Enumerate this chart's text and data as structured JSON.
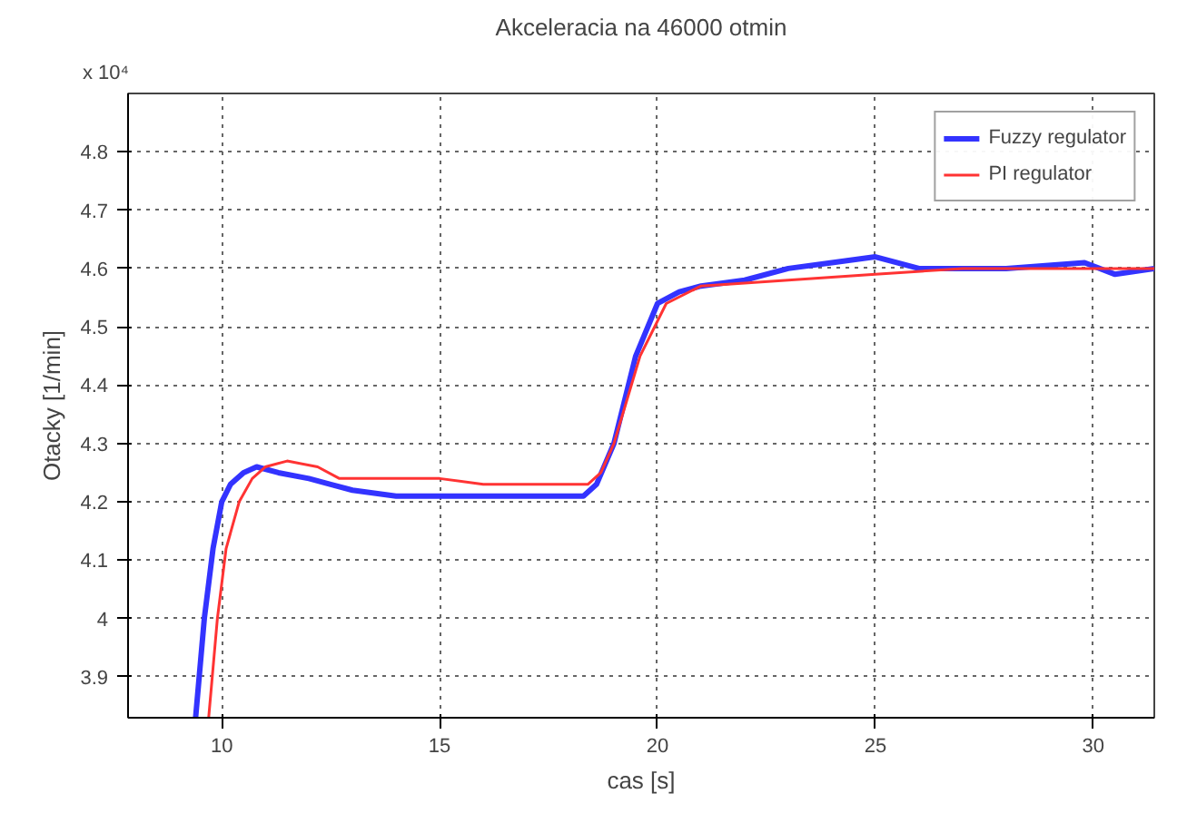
{
  "chart_data": {
    "type": "line",
    "title": "Akceleracia na 46000 otmin",
    "xlabel": "cas [s]",
    "ylabel": "Otacky [1/min]",
    "annotations": [
      "x 10⁴"
    ],
    "xlim": [
      7.85,
      31.4
    ],
    "xticks": [
      10,
      15,
      20,
      25,
      30
    ],
    "ylim": [
      3.83,
      4.9
    ],
    "yticks": [
      3.9,
      {
        "value": 4.0,
        "label": "4"
      },
      4.1,
      4.2,
      4.3,
      4.4,
      4.5,
      4.6,
      4.7,
      4.8
    ],
    "grid": true,
    "legend": "top right",
    "line_style": "solid",
    "series": [
      {
        "name": "Fuzzy regulator",
        "color": "#3333ff",
        "x": [
          9.4,
          9.6,
          9.8,
          10.0,
          10.2,
          10.5,
          10.8,
          11.3,
          12.0,
          12.5,
          13.0,
          14.0,
          16.0,
          18.3,
          18.6,
          19.0,
          19.5,
          20.0,
          20.5,
          21.0,
          22.0,
          23.0,
          24.0,
          25.0,
          26.0,
          28.0,
          29.8,
          30.5,
          31.4
        ],
        "values": [
          3.83,
          4.0,
          4.12,
          4.2,
          4.23,
          4.25,
          4.26,
          4.25,
          4.24,
          4.23,
          4.22,
          4.21,
          4.21,
          4.21,
          4.23,
          4.3,
          4.45,
          4.54,
          4.56,
          4.57,
          4.58,
          4.6,
          4.61,
          4.62,
          4.6,
          4.6,
          4.61,
          4.59,
          4.6
        ]
      },
      {
        "name": "PI regulator",
        "color": "#ff3333",
        "x": [
          9.7,
          9.9,
          10.1,
          10.4,
          10.7,
          11.0,
          11.5,
          12.2,
          12.7,
          15.0,
          16.0,
          18.4,
          18.7,
          19.0,
          19.6,
          20.2,
          21.0,
          23.0,
          25.0,
          27.0,
          31.4
        ],
        "values": [
          3.83,
          4.0,
          4.12,
          4.2,
          4.24,
          4.26,
          4.27,
          4.26,
          4.24,
          4.24,
          4.23,
          4.23,
          4.25,
          4.3,
          4.45,
          4.54,
          4.57,
          4.58,
          4.59,
          4.6,
          4.6
        ]
      }
    ]
  }
}
